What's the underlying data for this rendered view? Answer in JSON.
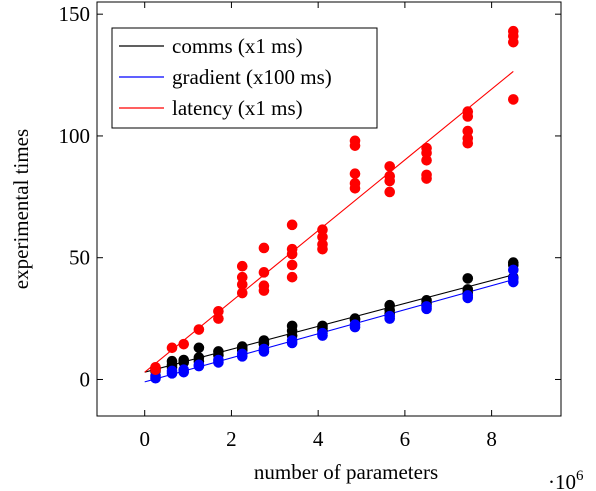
{
  "chart_data": {
    "type": "scatter",
    "xlabel": "number of parameters",
    "ylabel": "experimental times",
    "x_scale_note": "·10",
    "x_scale_exp": "6",
    "xlim": [
      -1.1,
      9.6
    ],
    "ylim": [
      -15,
      155
    ],
    "xticks": [
      0,
      2,
      4,
      6,
      8
    ],
    "yticks": [
      0,
      50,
      100,
      150
    ],
    "legend_position": "top-left",
    "series": [
      {
        "name": "comms (x1 ms)",
        "color": "#000000",
        "fit": {
          "x": [
            0,
            8.5
          ],
          "y": [
            3.0,
            43.0
          ]
        },
        "points": [
          [
            0.25,
            4.5
          ],
          [
            0.25,
            3.5
          ],
          [
            0.63,
            7.5
          ],
          [
            0.63,
            6.0
          ],
          [
            0.63,
            5.0
          ],
          [
            0.9,
            8.0
          ],
          [
            0.9,
            7.0
          ],
          [
            1.25,
            13.0
          ],
          [
            1.25,
            9.0
          ],
          [
            1.25,
            7.5
          ],
          [
            1.7,
            11.5
          ],
          [
            1.7,
            10.0
          ],
          [
            2.25,
            13.5
          ],
          [
            2.25,
            12.5
          ],
          [
            2.25,
            12.0
          ],
          [
            2.75,
            16.0
          ],
          [
            2.75,
            15.0
          ],
          [
            2.75,
            14.5
          ],
          [
            3.4,
            22.0
          ],
          [
            3.4,
            20.0
          ],
          [
            3.4,
            18.0
          ],
          [
            4.1,
            22.0
          ],
          [
            4.1,
            21.0
          ],
          [
            4.1,
            20.0
          ],
          [
            4.85,
            25.0
          ],
          [
            4.85,
            24.5
          ],
          [
            5.65,
            30.5
          ],
          [
            5.65,
            28.5
          ],
          [
            5.65,
            27.0
          ],
          [
            6.5,
            32.5
          ],
          [
            6.5,
            31.0
          ],
          [
            7.45,
            41.5
          ],
          [
            7.45,
            37.0
          ],
          [
            7.45,
            35.5
          ],
          [
            8.5,
            48.0
          ],
          [
            8.5,
            47.0
          ],
          [
            8.5,
            42.0
          ]
        ]
      },
      {
        "name": "gradient (x100 ms)",
        "color": "#0000ff",
        "fit": {
          "x": [
            0,
            8.5
          ],
          "y": [
            -1.0,
            41.0
          ]
        },
        "points": [
          [
            0.25,
            1.5
          ],
          [
            0.25,
            0.5
          ],
          [
            0.63,
            3.5
          ],
          [
            0.63,
            2.5
          ],
          [
            0.9,
            4.0
          ],
          [
            0.9,
            3.0
          ],
          [
            1.25,
            6.0
          ],
          [
            1.25,
            5.5
          ],
          [
            1.7,
            8.0
          ],
          [
            1.7,
            7.0
          ],
          [
            2.25,
            10.5
          ],
          [
            2.25,
            9.5
          ],
          [
            2.75,
            12.5
          ],
          [
            2.75,
            11.5
          ],
          [
            3.4,
            16.0
          ],
          [
            3.4,
            15.0
          ],
          [
            4.1,
            19.0
          ],
          [
            4.1,
            18.0
          ],
          [
            4.85,
            22.5
          ],
          [
            4.85,
            21.5
          ],
          [
            5.65,
            26.0
          ],
          [
            5.65,
            25.0
          ],
          [
            6.5,
            30.0
          ],
          [
            6.5,
            29.0
          ],
          [
            7.45,
            34.5
          ],
          [
            7.45,
            33.5
          ],
          [
            8.5,
            45.0
          ],
          [
            8.5,
            41.5
          ],
          [
            8.5,
            40.0
          ]
        ]
      },
      {
        "name": "latency (x1 ms)",
        "color": "#ff0000",
        "fit": {
          "x": [
            0,
            8.5
          ],
          "y": [
            3.0,
            126.5
          ]
        },
        "points": [
          [
            0.25,
            5.0
          ],
          [
            0.25,
            4.0
          ],
          [
            0.63,
            13.0
          ],
          [
            0.9,
            14.5
          ],
          [
            1.25,
            20.5
          ],
          [
            1.7,
            28.0
          ],
          [
            1.7,
            25.0
          ],
          [
            2.25,
            46.5
          ],
          [
            2.25,
            42.0
          ],
          [
            2.25,
            39.0
          ],
          [
            2.25,
            35.5
          ],
          [
            2.75,
            54.0
          ],
          [
            2.75,
            44.0
          ],
          [
            2.75,
            38.5
          ],
          [
            2.75,
            36.5
          ],
          [
            3.4,
            63.5
          ],
          [
            3.4,
            53.5
          ],
          [
            3.4,
            51.5
          ],
          [
            3.4,
            47.0
          ],
          [
            3.4,
            42.0
          ],
          [
            4.1,
            61.5
          ],
          [
            4.1,
            58.5
          ],
          [
            4.1,
            55.5
          ],
          [
            4.1,
            53.5
          ],
          [
            4.85,
            98.0
          ],
          [
            4.85,
            96.0
          ],
          [
            4.85,
            84.5
          ],
          [
            4.85,
            80.5
          ],
          [
            4.85,
            78.5
          ],
          [
            5.65,
            87.5
          ],
          [
            5.65,
            83.5
          ],
          [
            5.65,
            81.5
          ],
          [
            5.65,
            77.0
          ],
          [
            6.5,
            95.0
          ],
          [
            6.5,
            93.0
          ],
          [
            6.5,
            90.0
          ],
          [
            6.5,
            84.0
          ],
          [
            6.5,
            82.5
          ],
          [
            7.45,
            110.0
          ],
          [
            7.45,
            108.0
          ],
          [
            7.45,
            102.0
          ],
          [
            7.45,
            99.0
          ],
          [
            7.45,
            97.0
          ],
          [
            8.5,
            143.0
          ],
          [
            8.5,
            141.0
          ],
          [
            8.5,
            138.5
          ],
          [
            8.5,
            115.0
          ]
        ]
      }
    ]
  }
}
